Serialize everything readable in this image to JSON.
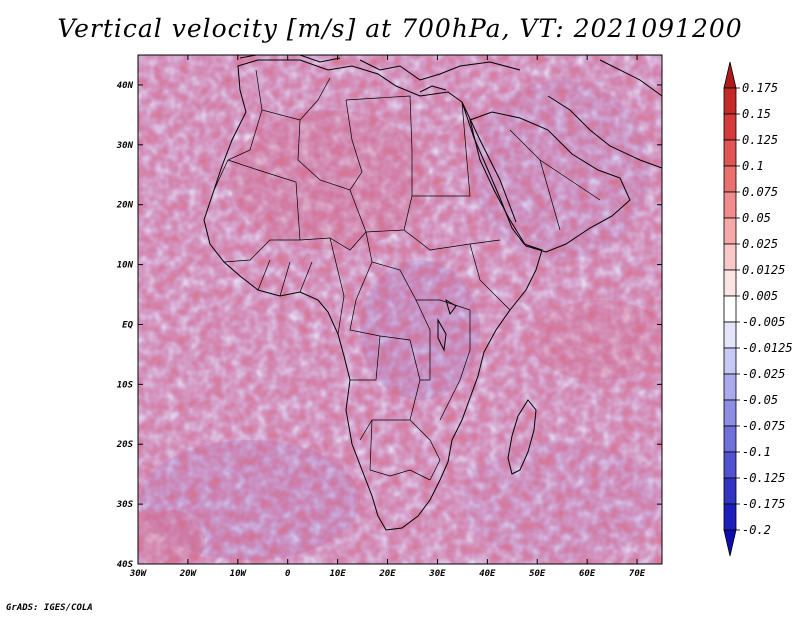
{
  "title": "Vertical velocity [m/s] at 700hPa, VT: 2021091200",
  "credit": "GrADS: IGES/COLA",
  "map": {
    "region": "Africa",
    "lon_ticks": [
      "30W",
      "20W",
      "10W",
      "0",
      "10E",
      "20E",
      "30E",
      "40E",
      "50E",
      "60E",
      "70E"
    ],
    "lat_ticks": [
      "40N",
      "30N",
      "20N",
      "10N",
      "EQ",
      "10S",
      "20S",
      "30S",
      "40S"
    ]
  },
  "colorbar": {
    "labels": [
      "0.175",
      "0.15",
      "0.125",
      "0.1",
      "0.075",
      "0.05",
      "0.025",
      "0.0125",
      "0.005",
      "-0.005",
      "-0.0125",
      "-0.025",
      "-0.05",
      "-0.075",
      "-0.1",
      "-0.125",
      "-0.175",
      "-0.2"
    ],
    "colors": [
      "#b01a1a",
      "#c42828",
      "#d43a3a",
      "#e05454",
      "#ea7070",
      "#f08c8c",
      "#f5aaaa",
      "#f9c8c8",
      "#fce4e4",
      "#ffffff",
      "#e4e4fa",
      "#c8c8f4",
      "#ababec",
      "#8e8ee4",
      "#7070da",
      "#5252d0",
      "#3434c4",
      "#1e1ebc",
      "#0c0cb0"
    ]
  }
}
